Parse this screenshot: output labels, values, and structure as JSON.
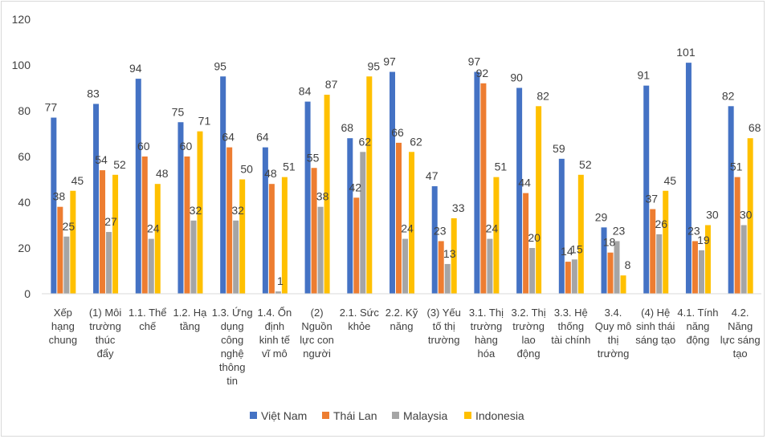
{
  "chart_data": {
    "type": "bar",
    "title": "",
    "xlabel": "",
    "ylabel": "",
    "ylim": [
      0,
      120
    ],
    "yticks": [
      0,
      20,
      40,
      60,
      80,
      100,
      120
    ],
    "grid": false,
    "legend_position": "bottom",
    "categories": [
      [
        "Xếp",
        "hạng",
        "chung"
      ],
      [
        "(1) Môi",
        "trường",
        "thúc",
        "đẩy"
      ],
      [
        "1.1. Thể",
        "chế"
      ],
      [
        "1.2. Hạ",
        "tầng"
      ],
      [
        "1.3. Ứng",
        "dụng",
        "công",
        "nghệ",
        "thông",
        "tin"
      ],
      [
        "1.4. Ổn",
        "định",
        "kinh tế",
        "vĩ mô"
      ],
      [
        "(2)",
        "Nguồn",
        "lực con",
        "người"
      ],
      [
        "2.1. Sức",
        "khỏe"
      ],
      [
        "2.2. Kỹ",
        "năng"
      ],
      [
        "(3) Yếu",
        "tố thị",
        "trường"
      ],
      [
        "3.1. Thị",
        "trường",
        "hàng",
        "hóa"
      ],
      [
        "3.2. Thị",
        "trường",
        "lao",
        "động"
      ],
      [
        "3.3. Hệ",
        "thống",
        "tài chính"
      ],
      [
        "3.4.",
        "Quy mô",
        "thị",
        "trường"
      ],
      [
        "(4) Hệ",
        "sinh thái",
        "sáng tạo"
      ],
      [
        "4.1. Tính",
        "năng",
        "động"
      ],
      [
        "4.2.",
        "Năng",
        "lực sáng",
        "tạo"
      ]
    ],
    "series": [
      {
        "name": "Việt Nam",
        "color": "#4472C4",
        "values": [
          77,
          83,
          94,
          75,
          95,
          64,
          84,
          68,
          97,
          47,
          97,
          90,
          59,
          29,
          91,
          101,
          82
        ]
      },
      {
        "name": "Thái Lan",
        "color": "#ED7D31",
        "values": [
          38,
          54,
          60,
          60,
          64,
          48,
          55,
          42,
          66,
          23,
          92,
          44,
          14,
          18,
          37,
          23,
          51
        ]
      },
      {
        "name": "Malaysia",
        "color": "#A5A5A5",
        "values": [
          25,
          27,
          24,
          32,
          32,
          1,
          38,
          62,
          24,
          13,
          24,
          20,
          15,
          23,
          26,
          19,
          30
        ]
      },
      {
        "name": "Indonesia",
        "color": "#FFC000",
        "values": [
          45,
          52,
          48,
          71,
          50,
          51,
          87,
          95,
          62,
          33,
          51,
          82,
          52,
          8,
          45,
          30,
          68
        ]
      }
    ]
  }
}
